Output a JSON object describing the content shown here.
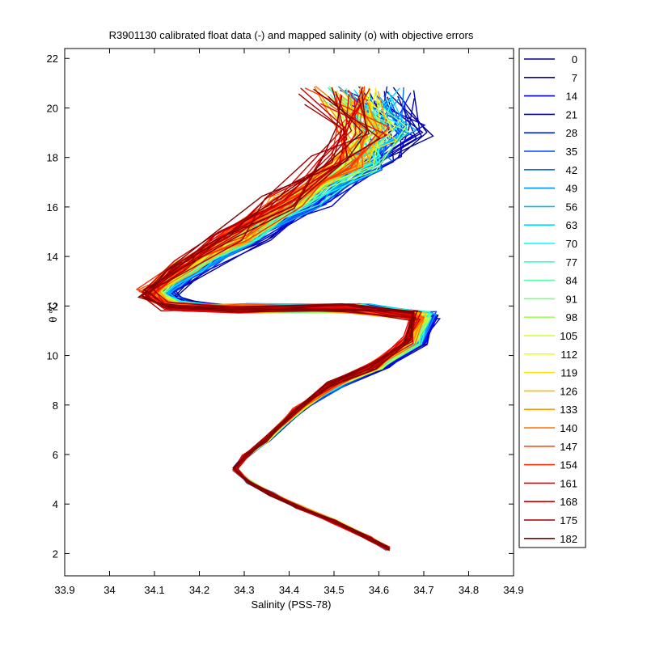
{
  "chart_data": {
    "type": "line",
    "title": "R3901130 calibrated float data (-) and mapped salinity (o) with objective errors",
    "xlabel": "Salinity (PSS-78)",
    "ylabel": "θ °C",
    "xlim": [
      33.9,
      34.9
    ],
    "ylim": [
      1.1,
      22.4
    ],
    "xticks": [
      "33.9",
      "34",
      "34.1",
      "34.2",
      "34.3",
      "34.4",
      "34.5",
      "34.6",
      "34.7",
      "34.8",
      "34.9"
    ],
    "yticks": [
      "2",
      "4",
      "6",
      "8",
      "10",
      "12",
      "14",
      "16",
      "18",
      "20",
      "22"
    ],
    "grid": false,
    "legend_position": "outside-right",
    "colormap": "jet",
    "series": [
      {
        "name": "0",
        "color": "#00008f"
      },
      {
        "name": "7",
        "color": "#0000ac"
      },
      {
        "name": "14",
        "color": "#0000d4"
      },
      {
        "name": "21",
        "color": "#0000f8"
      },
      {
        "name": "28",
        "color": "#0021ff"
      },
      {
        "name": "35",
        "color": "#0048ff"
      },
      {
        "name": "42",
        "color": "#006cff"
      },
      {
        "name": "49",
        "color": "#0090ff"
      },
      {
        "name": "56",
        "color": "#00b4ff"
      },
      {
        "name": "63",
        "color": "#00dcff"
      },
      {
        "name": "70",
        "color": "#04ffff"
      },
      {
        "name": "77",
        "color": "#2dffd2"
      },
      {
        "name": "84",
        "color": "#55ffaa"
      },
      {
        "name": "91",
        "color": "#7dff82"
      },
      {
        "name": "98",
        "color": "#a5ff5a"
      },
      {
        "name": "105",
        "color": "#cdff32"
      },
      {
        "name": "112",
        "color": "#f5ff0a"
      },
      {
        "name": "119",
        "color": "#ffe100"
      },
      {
        "name": "126",
        "color": "#ffbd00"
      },
      {
        "name": "133",
        "color": "#ff9900"
      },
      {
        "name": "140",
        "color": "#ff7500"
      },
      {
        "name": "147",
        "color": "#ff5100"
      },
      {
        "name": "154",
        "color": "#ff2d00"
      },
      {
        "name": "161",
        "color": "#f00000"
      },
      {
        "name": "168",
        "color": "#c80000"
      },
      {
        "name": "175",
        "color": "#a40000"
      },
      {
        "name": "182",
        "color": "#800000"
      }
    ],
    "profile_shape": {
      "note": "each cycle's theta-S profile follows this deep-to-surface path, with per-cycle variation in the upper water column",
      "points": [
        {
          "s": 34.62,
          "t": 2.2
        },
        {
          "s": 34.58,
          "t": 2.6
        },
        {
          "s": 34.5,
          "t": 3.3
        },
        {
          "s": 34.42,
          "t": 3.9
        },
        {
          "s": 34.36,
          "t": 4.4
        },
        {
          "s": 34.31,
          "t": 4.9
        },
        {
          "s": 34.28,
          "t": 5.4
        },
        {
          "s": 34.3,
          "t": 5.9
        },
        {
          "s": 34.35,
          "t": 6.6
        },
        {
          "s": 34.42,
          "t": 7.8
        },
        {
          "s": 34.5,
          "t": 8.8
        },
        {
          "s": 34.6,
          "t": 9.6
        },
        {
          "s": 34.68,
          "t": 10.6
        },
        {
          "s": 34.7,
          "t": 11.6
        },
        {
          "s": 34.55,
          "t": 11.9
        },
        {
          "s": 34.3,
          "t": 11.9
        },
        {
          "s": 34.15,
          "t": 12.0
        },
        {
          "s": 34.1,
          "t": 12.5
        },
        {
          "s": 34.18,
          "t": 13.6
        },
        {
          "s": 34.3,
          "t": 14.8
        },
        {
          "s": 34.42,
          "t": 16.2
        },
        {
          "s": 34.55,
          "t": 17.8
        },
        {
          "s": 34.6,
          "t": 19.0
        },
        {
          "s": 34.55,
          "t": 20.5
        }
      ]
    }
  }
}
